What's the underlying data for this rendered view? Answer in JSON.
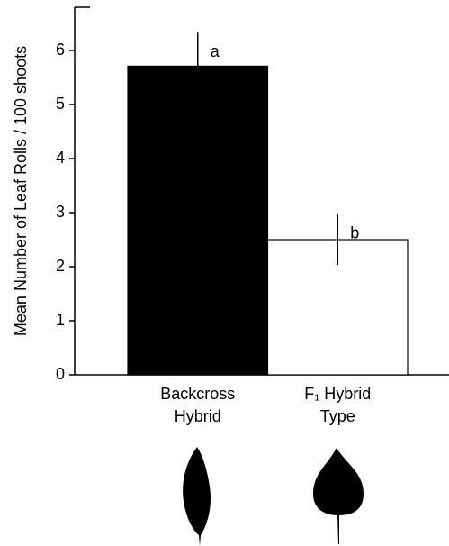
{
  "chart_data": {
    "type": "bar",
    "ylabel": "Mean Number of Leaf Rolls / 100 shoots",
    "categories": [
      [
        "Backcross",
        "Hybrid"
      ],
      [
        "F₁ Hybrid",
        "Type"
      ]
    ],
    "values": [
      5.71,
      2.5
    ],
    "errors": [
      0.62,
      0.47
    ],
    "annotations": [
      "a",
      "b"
    ],
    "colors": [
      "#000000",
      "#ffffff"
    ],
    "ylim": [
      0,
      6.8
    ],
    "yticks": [
      0,
      1,
      2,
      3,
      4,
      5,
      6
    ],
    "grid": false
  }
}
